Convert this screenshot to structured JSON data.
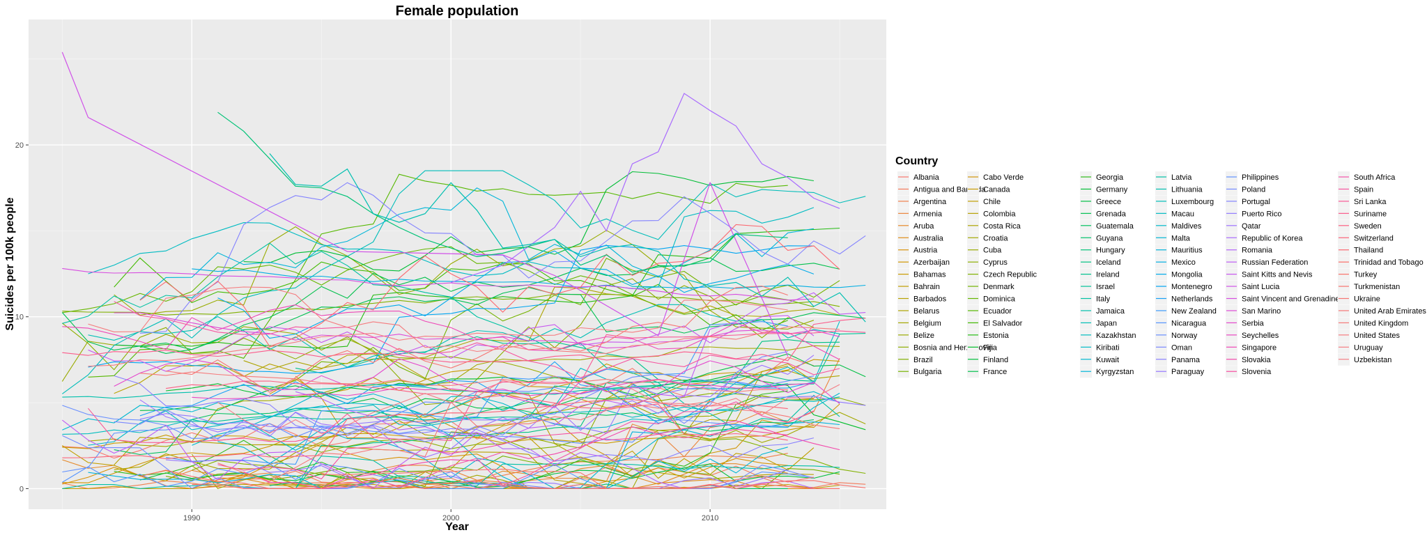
{
  "chart_data": {
    "type": "line",
    "title": "Female population",
    "xlabel": "Year",
    "ylabel": "Suicides per 100k people",
    "xlim": [
      1983.7,
      2016.8
    ],
    "ylim": [
      -1.2,
      27.3
    ],
    "x_ticks": [
      1990,
      2000,
      2010
    ],
    "y_ticks": [
      0,
      10,
      20
    ],
    "grid": true,
    "legend_title": "Country",
    "legend_position": "right",
    "series": [
      {
        "name": "Albania",
        "color": "#F8766D"
      },
      {
        "name": "Antigua and Barbuda",
        "color": "#F47A5B"
      },
      {
        "name": "Argentina",
        "color": "#F07F4C"
      },
      {
        "name": "Armenia",
        "color": "#EB843A"
      },
      {
        "name": "Aruba",
        "color": "#E58929"
      },
      {
        "name": "Australia",
        "color": "#DF8D18"
      },
      {
        "name": "Austria",
        "color": "#D89209"
      },
      {
        "name": "Azerbaijan",
        "color": "#D19600"
      },
      {
        "name": "Bahamas",
        "color": "#C99A00"
      },
      {
        "name": "Bahrain",
        "color": "#C19E00"
      },
      {
        "name": "Barbados",
        "color": "#B8A200"
      },
      {
        "name": "Belarus",
        "color": "#AEA500"
      },
      {
        "name": "Belgium",
        "color": "#A4A800"
      },
      {
        "name": "Belize",
        "color": "#99AB00"
      },
      {
        "name": "Bosnia and Herzegovina",
        "color": "#8EAE00"
      },
      {
        "name": "Brazil",
        "color": "#82B100"
      },
      {
        "name": "Bulgaria",
        "color": "#75B300"
      },
      {
        "name": "Cabo Verde",
        "color": "#D0960A"
      },
      {
        "name": "Canada",
        "color": "#C89A00"
      },
      {
        "name": "Chile",
        "color": "#C09E00"
      },
      {
        "name": "Colombia",
        "color": "#B7A100"
      },
      {
        "name": "Costa Rica",
        "color": "#ADA400"
      },
      {
        "name": "Croatia",
        "color": "#A3A800"
      },
      {
        "name": "Cuba",
        "color": "#98AB00"
      },
      {
        "name": "Cyprus",
        "color": "#8DAE00"
      },
      {
        "name": "Czech Republic",
        "color": "#81B100"
      },
      {
        "name": "Denmark",
        "color": "#74B300"
      },
      {
        "name": "Dominica",
        "color": "#66B600"
      },
      {
        "name": "Ecuador",
        "color": "#56B800"
      },
      {
        "name": "El Salvador",
        "color": "#42BA00"
      },
      {
        "name": "Estonia",
        "color": "#25BC12"
      },
      {
        "name": "Fiji",
        "color": "#00BD2A"
      },
      {
        "name": "Finland",
        "color": "#00BF3C"
      },
      {
        "name": "France",
        "color": "#00C04B"
      },
      {
        "name": "Georgia",
        "color": "#2FBB1B"
      },
      {
        "name": "Germany",
        "color": "#00BD35"
      },
      {
        "name": "Greece",
        "color": "#00BF44"
      },
      {
        "name": "Grenada",
        "color": "#00C052"
      },
      {
        "name": "Guatemala",
        "color": "#00C15F"
      },
      {
        "name": "Guyana",
        "color": "#00C26B"
      },
      {
        "name": "Hungary",
        "color": "#00C277"
      },
      {
        "name": "Iceland",
        "color": "#00C282"
      },
      {
        "name": "Ireland",
        "color": "#00C28D"
      },
      {
        "name": "Israel",
        "color": "#00C298"
      },
      {
        "name": "Italy",
        "color": "#00C1A2"
      },
      {
        "name": "Jamaica",
        "color": "#00C0AC"
      },
      {
        "name": "Japan",
        "color": "#00BFB5"
      },
      {
        "name": "Kazakhstan",
        "color": "#00BDBF"
      },
      {
        "name": "Kiribati",
        "color": "#00BBC7"
      },
      {
        "name": "Kuwait",
        "color": "#00B8D0"
      },
      {
        "name": "Kyrgyzstan",
        "color": "#00B5D8"
      },
      {
        "name": "Latvia",
        "color": "#00C0A6"
      },
      {
        "name": "Lithuania",
        "color": "#00BFB0"
      },
      {
        "name": "Luxembourg",
        "color": "#00BDB9"
      },
      {
        "name": "Macau",
        "color": "#00BBC2"
      },
      {
        "name": "Maldives",
        "color": "#00B9CB"
      },
      {
        "name": "Malta",
        "color": "#00B6D3"
      },
      {
        "name": "Mauritius",
        "color": "#00B2DB"
      },
      {
        "name": "Mexico",
        "color": "#00AEE3"
      },
      {
        "name": "Mongolia",
        "color": "#00AAEA"
      },
      {
        "name": "Montenegro",
        "color": "#00A5F1"
      },
      {
        "name": "Netherlands",
        "color": "#18A0F7"
      },
      {
        "name": "New Zealand",
        "color": "#3D9AFC"
      },
      {
        "name": "Nicaragua",
        "color": "#5594FF"
      },
      {
        "name": "Norway",
        "color": "#688EFF"
      },
      {
        "name": "Oman",
        "color": "#7987FF"
      },
      {
        "name": "Panama",
        "color": "#887FFF"
      },
      {
        "name": "Paraguay",
        "color": "#9577FF"
      },
      {
        "name": "Philippines",
        "color": "#6191FF"
      },
      {
        "name": "Poland",
        "color": "#738AFF"
      },
      {
        "name": "Portugal",
        "color": "#8382FF"
      },
      {
        "name": "Puerto Rico",
        "color": "#917AFF"
      },
      {
        "name": "Qatar",
        "color": "#9E72FF"
      },
      {
        "name": "Republic of Korea",
        "color": "#A96BFE"
      },
      {
        "name": "Romania",
        "color": "#B463FA"
      },
      {
        "name": "Russian Federation",
        "color": "#BE5CF5"
      },
      {
        "name": "Saint Kitts and Nevis",
        "color": "#C756EF"
      },
      {
        "name": "Saint Lucia",
        "color": "#D051E8"
      },
      {
        "name": "Saint Vincent and Grenadines",
        "color": "#D74DE0"
      },
      {
        "name": "San Marino",
        "color": "#DE4AD7"
      },
      {
        "name": "Serbia",
        "color": "#E448CD"
      },
      {
        "name": "Seychelles",
        "color": "#EA47C2"
      },
      {
        "name": "Singapore",
        "color": "#EF47B7"
      },
      {
        "name": "Slovakia",
        "color": "#F348AB"
      },
      {
        "name": "Slovenia",
        "color": "#F64B9F"
      },
      {
        "name": "South Africa",
        "color": "#F453A9"
      },
      {
        "name": "Spain",
        "color": "#F7549F"
      },
      {
        "name": "Sri Lanka",
        "color": "#F95795"
      },
      {
        "name": "Suriname",
        "color": "#FB5B8B"
      },
      {
        "name": "Sweden",
        "color": "#FC5F82"
      },
      {
        "name": "Switzerland",
        "color": "#FC6379"
      },
      {
        "name": "Thailand",
        "color": "#FB6870"
      },
      {
        "name": "Trinidad and Tobago",
        "color": "#FA6D67"
      },
      {
        "name": "Turkey",
        "color": "#F8716A"
      },
      {
        "name": "Turkmenistan",
        "color": "#F7736E"
      },
      {
        "name": "Ukraine",
        "color": "#F77572"
      },
      {
        "name": "United Arab Emirates",
        "color": "#F67776"
      },
      {
        "name": "United Kingdom",
        "color": "#F6797A"
      },
      {
        "name": "United States",
        "color": "#F57B7E"
      },
      {
        "name": "Uruguay",
        "color": "#F57D82"
      },
      {
        "name": "Uzbekistan",
        "color": "#F47F86"
      }
    ],
    "highlight_series": [
      {
        "name": "Saint Lucia",
        "x": [
          1985,
          1986,
          1996,
          2002,
          2004,
          2008,
          2010,
          2013
        ],
        "y": [
          25.4,
          21.6,
          13.8,
          13.6,
          12.4,
          8.9,
          17.8,
          7.7
        ]
      },
      {
        "name": "Republic of Korea",
        "x": [
          2000,
          2002,
          2004,
          2005,
          2006,
          2007,
          2008,
          2009,
          2010,
          2011,
          2012,
          2013,
          2014,
          2015
        ],
        "y": [
          12.0,
          13.0,
          15.2,
          17.3,
          15.0,
          18.9,
          19.6,
          23.0,
          22.0,
          21.1,
          18.9,
          18.1,
          16.9,
          16.3
        ]
      },
      {
        "name": "Hungary",
        "x": [
          1991,
          1992,
          1993,
          1994,
          1995,
          1996,
          1997,
          1998,
          1999,
          2000,
          2001,
          2002,
          2003,
          2004,
          2005,
          2006,
          2007,
          2008,
          2009,
          2010,
          2011,
          2012,
          2013
        ],
        "y": [
          21.9,
          20.8,
          19.2,
          17.6,
          17.5,
          17.0,
          16.0,
          15.2,
          14.5,
          14.0,
          13.5,
          13.7,
          14.1,
          14.5,
          13.0,
          13.6,
          12.6,
          12.9,
          13.0,
          13.2,
          14.8,
          14.7,
          14.6
        ]
      },
      {
        "name": "Lithuania",
        "x": [
          1993,
          1994,
          1995,
          1996,
          1997,
          1998,
          1999,
          2000,
          2001,
          2002,
          2003,
          2004,
          2005,
          2006,
          2007,
          2008,
          2009,
          2010,
          2011,
          2012,
          2013,
          2014,
          2015,
          2016
        ],
        "y": [
          19.5,
          17.7,
          17.6,
          18.6,
          16.0,
          15.5,
          16.0,
          17.8,
          16.2,
          14.0,
          14.2,
          14.5,
          13.5,
          14.0,
          14.2,
          13.8,
          12.2,
          11.8,
          12.0,
          11.2,
          12.3,
          10.6,
          11.4,
          9.7
        ]
      }
    ]
  }
}
